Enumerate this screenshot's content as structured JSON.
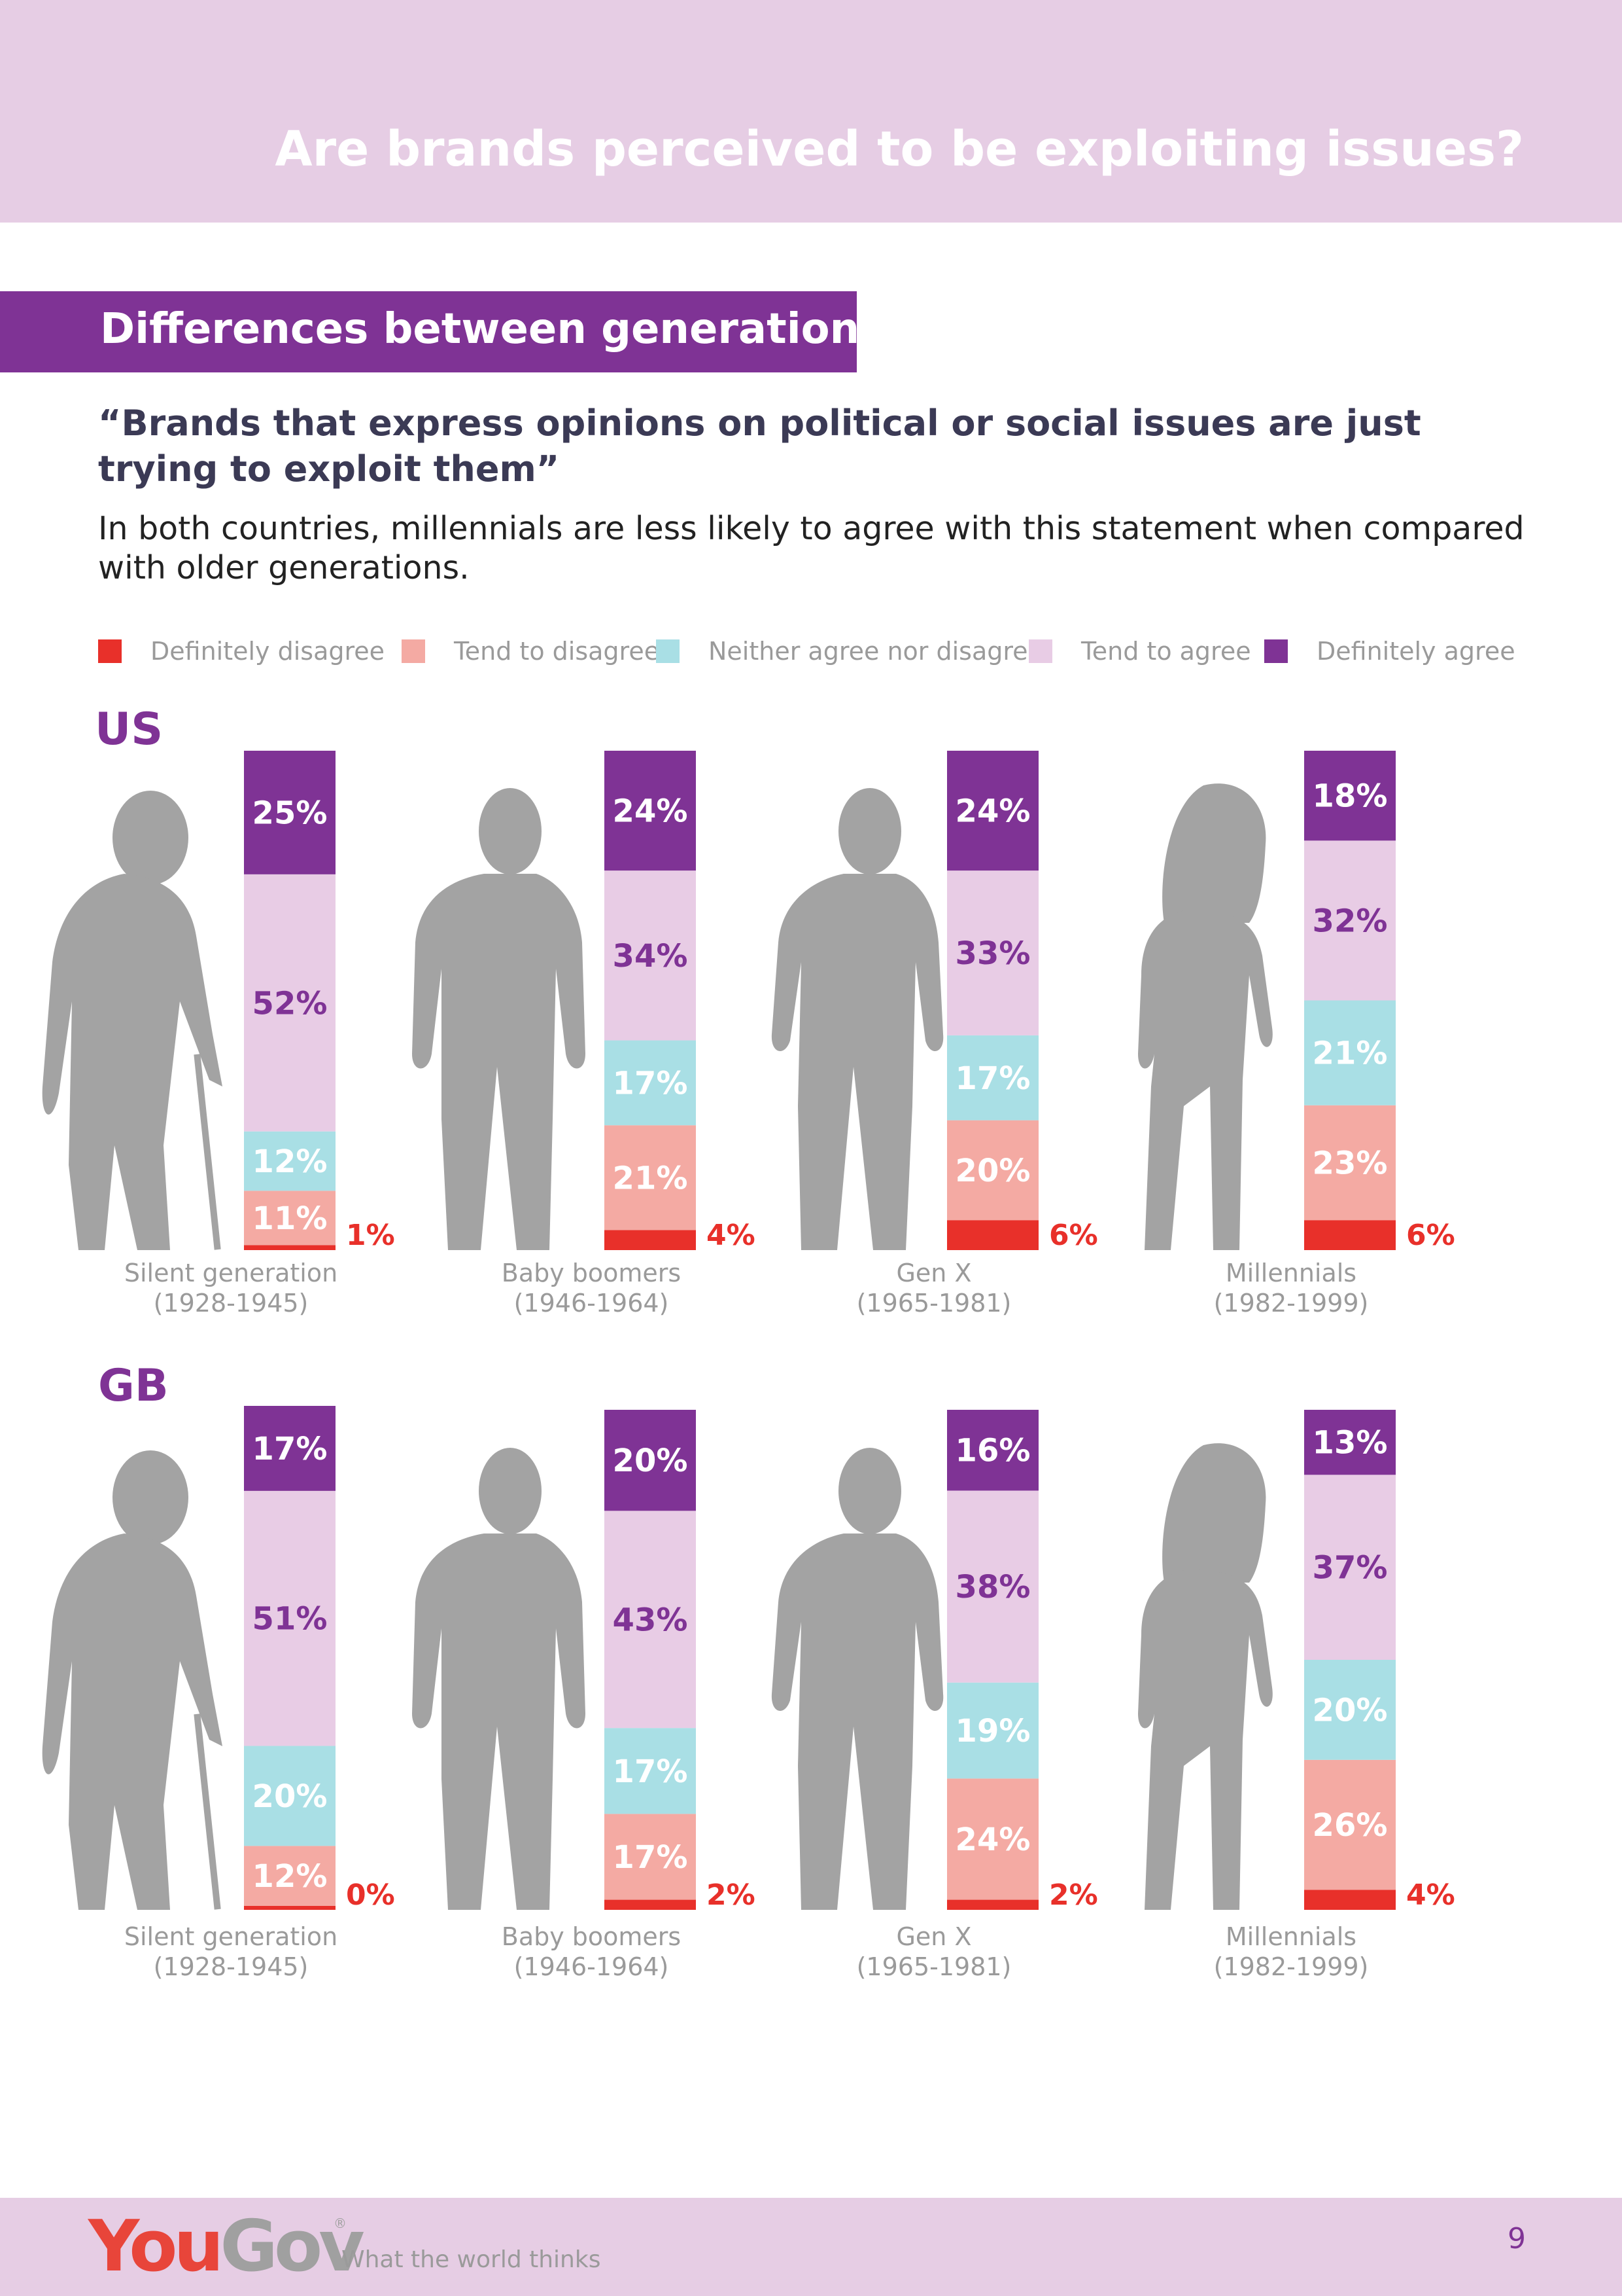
{
  "header": {
    "title": "Are brands perceived to be exploiting issues?"
  },
  "section": {
    "title": "Differences between generations"
  },
  "quote": "“Brands that express opinions on political or social issues are just trying to exploit them”",
  "description": "In both countries, millennials are less likely to agree with this statement when compared with older generations.",
  "legend": [
    {
      "label": "Definitely disagree",
      "color": "#e8302a"
    },
    {
      "label": "Tend to disagree",
      "color": "#f4aaa3"
    },
    {
      "label": "Neither agree nor disagree",
      "color": "#a9dfe5"
    },
    {
      "label": "Tend to agree",
      "color": "#e8cce5"
    },
    {
      "label": "Definitely agree",
      "color": "#7f3395"
    }
  ],
  "chart_data": [
    {
      "type": "bar",
      "title": "US",
      "stacked": true,
      "unit": "%",
      "categories": [
        "Silent generation",
        "Baby boomers",
        "Gen X",
        "Millennials"
      ],
      "category_years": [
        "(1928-1945)",
        "(1946-1964)",
        "(1965-1981)",
        "(1982-1999)"
      ],
      "series": [
        {
          "name": "Definitely disagree",
          "values": [
            1,
            4,
            6,
            6
          ]
        },
        {
          "name": "Tend to disagree",
          "values": [
            11,
            21,
            20,
            23
          ]
        },
        {
          "name": "Neither agree nor disagree",
          "values": [
            12,
            17,
            17,
            21
          ]
        },
        {
          "name": "Tend to agree",
          "values": [
            52,
            34,
            33,
            32
          ]
        },
        {
          "name": "Definitely agree",
          "values": [
            25,
            24,
            24,
            18
          ]
        }
      ]
    },
    {
      "type": "bar",
      "title": "GB",
      "stacked": true,
      "unit": "%",
      "categories": [
        "Silent generation",
        "Baby boomers",
        "Gen X",
        "Millennials"
      ],
      "category_years": [
        "(1928-1945)",
        "(1946-1964)",
        "(1965-1981)",
        "(1982-1999)"
      ],
      "series": [
        {
          "name": "Definitely disagree",
          "values": [
            0,
            2,
            2,
            4
          ]
        },
        {
          "name": "Tend to disagree",
          "values": [
            12,
            17,
            24,
            26
          ]
        },
        {
          "name": "Neither agree nor disagree",
          "values": [
            20,
            17,
            19,
            20
          ]
        },
        {
          "name": "Tend to agree",
          "values": [
            51,
            43,
            38,
            37
          ]
        },
        {
          "name": "Definitely agree",
          "values": [
            17,
            20,
            16,
            13
          ]
        }
      ]
    }
  ],
  "footer": {
    "logo_you": "You",
    "logo_gov": "Gov",
    "registered": "®",
    "tagline": "What the world thinks",
    "page_number": "9"
  }
}
